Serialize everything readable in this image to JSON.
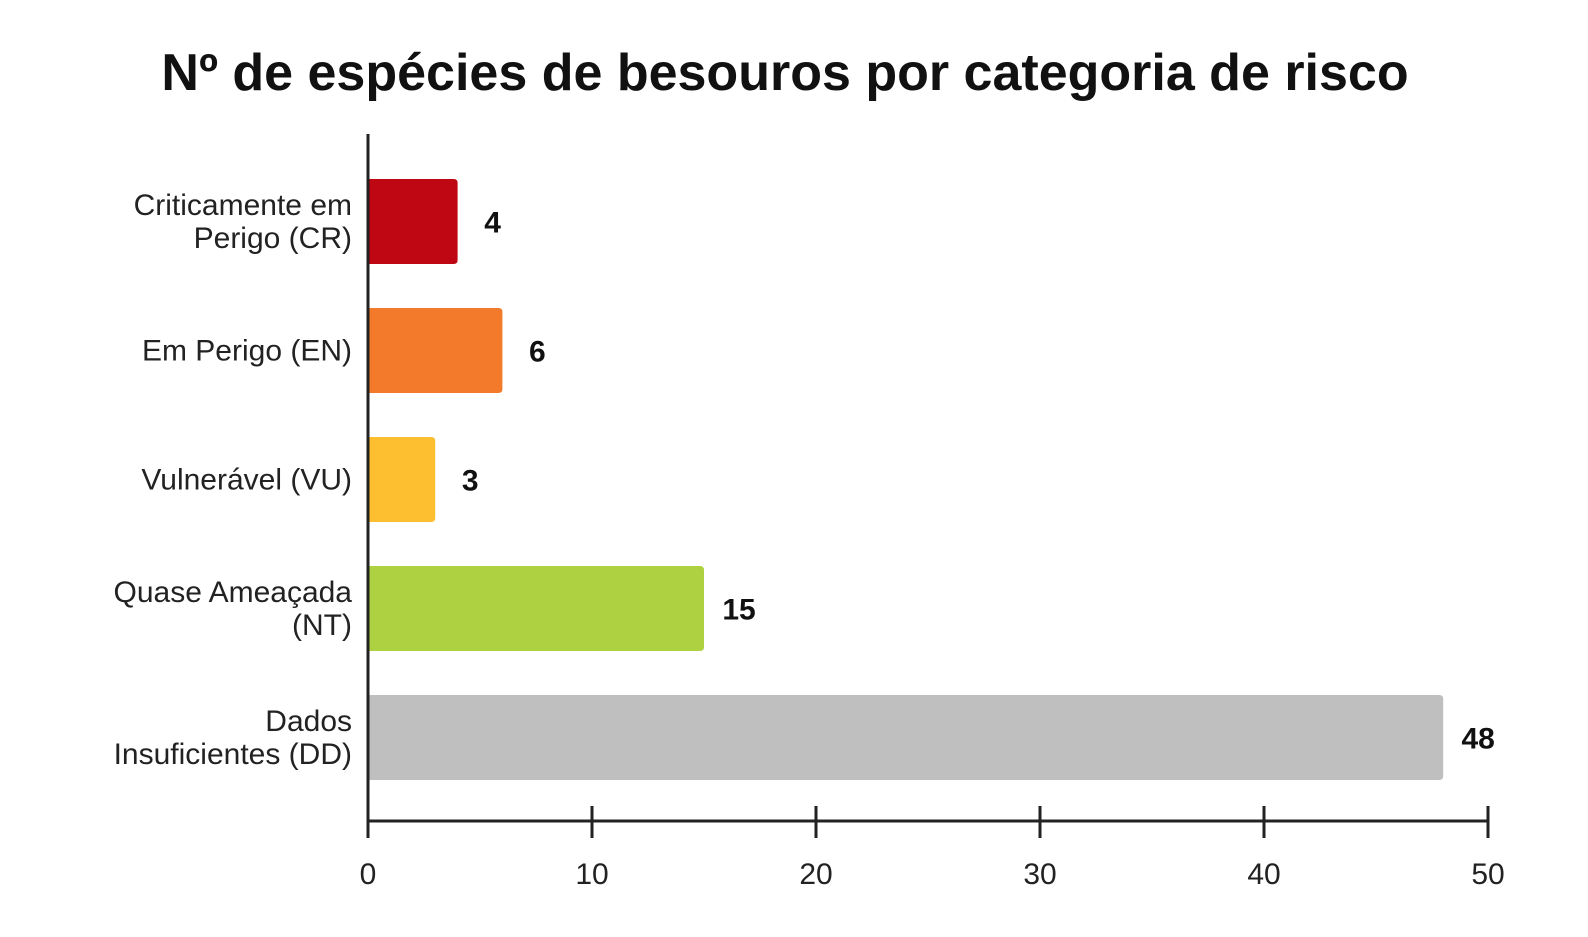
{
  "chart_data": {
    "type": "bar",
    "orientation": "horizontal",
    "title": "Nº de espécies de besouros por categoria de risco",
    "categories": [
      [
        "Criticamente em",
        "Perigo (CR)"
      ],
      [
        "Em Perigo (EN)"
      ],
      [
        "Vulnerável (VU)"
      ],
      [
        "Quase Ameaçada",
        "(NT)"
      ],
      [
        "Dados",
        "Insuficientes (DD)"
      ]
    ],
    "values": [
      4,
      6,
      3,
      15,
      48
    ],
    "data_labels": [
      "4",
      "6",
      "3",
      "15",
      "48"
    ],
    "colors": [
      "#be0712",
      "#f27a2a",
      "#fdbf2f",
      "#aed142",
      "#bfbfbf"
    ],
    "xlim": [
      0,
      50
    ],
    "xticks": [
      0,
      10,
      20,
      30,
      40,
      50
    ],
    "xlabel": "",
    "ylabel": "",
    "grid": false,
    "legend": "none"
  }
}
